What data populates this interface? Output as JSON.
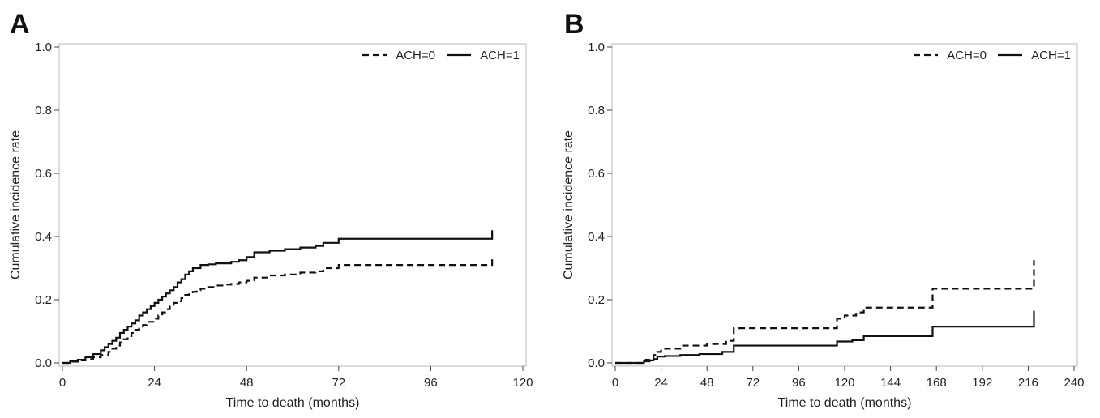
{
  "chart_data": [
    {
      "type": "line",
      "panel_label": "A",
      "xlabel": "Time to death (months)",
      "ylabel": "Cumulative incidence rate",
      "xlim": [
        0,
        120
      ],
      "ylim": [
        0,
        1.0
      ],
      "xticks": [
        0,
        24,
        48,
        72,
        96,
        120
      ],
      "yticks": [
        0.0,
        0.2,
        0.4,
        0.6,
        0.8,
        1.0
      ],
      "xtick_labels": [
        "0",
        "24",
        "48",
        "72",
        "96",
        "120"
      ],
      "ytick_labels": [
        "0.0",
        "0.2",
        "0.4",
        "0.6",
        "0.8",
        "1.0"
      ],
      "grid": false,
      "legend_position": "top-right",
      "step": true,
      "series": [
        {
          "name": "ACH=0",
          "style": "dashed",
          "x": [
            0,
            2,
            4,
            6,
            8,
            10,
            12,
            13,
            14,
            15,
            16,
            17,
            18,
            19,
            20,
            21,
            22,
            24,
            25,
            26,
            27,
            28,
            29,
            30,
            31,
            32,
            33,
            34,
            35,
            36,
            38,
            40,
            42,
            44,
            46,
            48,
            50,
            54,
            58,
            62,
            66,
            68,
            72,
            80,
            90,
            100,
            112,
            112
          ],
          "y": [
            0.0,
            0.004,
            0.008,
            0.012,
            0.018,
            0.025,
            0.035,
            0.045,
            0.055,
            0.065,
            0.075,
            0.085,
            0.095,
            0.105,
            0.115,
            0.12,
            0.13,
            0.14,
            0.15,
            0.16,
            0.17,
            0.18,
            0.19,
            0.195,
            0.205,
            0.215,
            0.22,
            0.225,
            0.23,
            0.235,
            0.24,
            0.245,
            0.248,
            0.25,
            0.255,
            0.26,
            0.27,
            0.277,
            0.28,
            0.286,
            0.29,
            0.3,
            0.31,
            0.31,
            0.31,
            0.31,
            0.31,
            0.335
          ]
        },
        {
          "name": "ACH=1",
          "style": "solid",
          "x": [
            0,
            2,
            4,
            6,
            8,
            10,
            11,
            12,
            13,
            14,
            15,
            16,
            17,
            18,
            19,
            20,
            21,
            22,
            23,
            24,
            25,
            26,
            27,
            28,
            29,
            30,
            31,
            32,
            33,
            34,
            36,
            38,
            40,
            44,
            46,
            48,
            50,
            54,
            58,
            62,
            66,
            68,
            72,
            80,
            90,
            100,
            112,
            112
          ],
          "y": [
            0.0,
            0.005,
            0.01,
            0.018,
            0.028,
            0.04,
            0.05,
            0.06,
            0.07,
            0.08,
            0.095,
            0.105,
            0.115,
            0.125,
            0.135,
            0.15,
            0.16,
            0.17,
            0.18,
            0.19,
            0.2,
            0.21,
            0.22,
            0.23,
            0.24,
            0.255,
            0.265,
            0.28,
            0.29,
            0.3,
            0.31,
            0.312,
            0.315,
            0.32,
            0.325,
            0.335,
            0.35,
            0.355,
            0.36,
            0.365,
            0.37,
            0.38,
            0.393,
            0.393,
            0.393,
            0.393,
            0.393,
            0.42
          ]
        }
      ]
    },
    {
      "type": "line",
      "panel_label": "B",
      "xlabel": "Time to death (months)",
      "ylabel": "Cumulative incidence rate",
      "xlim": [
        0,
        240
      ],
      "ylim": [
        0,
        1.0
      ],
      "xticks": [
        0,
        24,
        48,
        72,
        96,
        120,
        144,
        168,
        192,
        216,
        240
      ],
      "yticks": [
        0.0,
        0.2,
        0.4,
        0.6,
        0.8,
        1.0
      ],
      "xtick_labels": [
        "0",
        "24",
        "48",
        "72",
        "96",
        "120",
        "144",
        "168",
        "192",
        "216",
        "240"
      ],
      "ytick_labels": [
        "0.0",
        "0.2",
        "0.4",
        "0.6",
        "0.8",
        "1.0"
      ],
      "grid": false,
      "legend_position": "top-right",
      "step": true,
      "series": [
        {
          "name": "ACH=0",
          "style": "dashed",
          "x": [
            0,
            14,
            16,
            18,
            20,
            22,
            24,
            34,
            48,
            58,
            62,
            100,
            116,
            120,
            126,
            130,
            140,
            166,
            180,
            200,
            219,
            219
          ],
          "y": [
            0.0,
            0.005,
            0.01,
            0.015,
            0.025,
            0.035,
            0.045,
            0.055,
            0.06,
            0.07,
            0.11,
            0.11,
            0.14,
            0.15,
            0.16,
            0.175,
            0.175,
            0.235,
            0.235,
            0.235,
            0.235,
            0.325
          ]
        },
        {
          "name": "ACH=1",
          "style": "solid",
          "x": [
            0,
            15,
            18,
            20,
            22,
            26,
            34,
            44,
            56,
            62,
            80,
            100,
            116,
            124,
            130,
            150,
            166,
            180,
            200,
            219,
            219
          ],
          "y": [
            0.0,
            0.005,
            0.008,
            0.012,
            0.02,
            0.022,
            0.025,
            0.028,
            0.035,
            0.055,
            0.055,
            0.055,
            0.068,
            0.072,
            0.085,
            0.085,
            0.115,
            0.115,
            0.115,
            0.115,
            0.165
          ]
        }
      ]
    }
  ]
}
